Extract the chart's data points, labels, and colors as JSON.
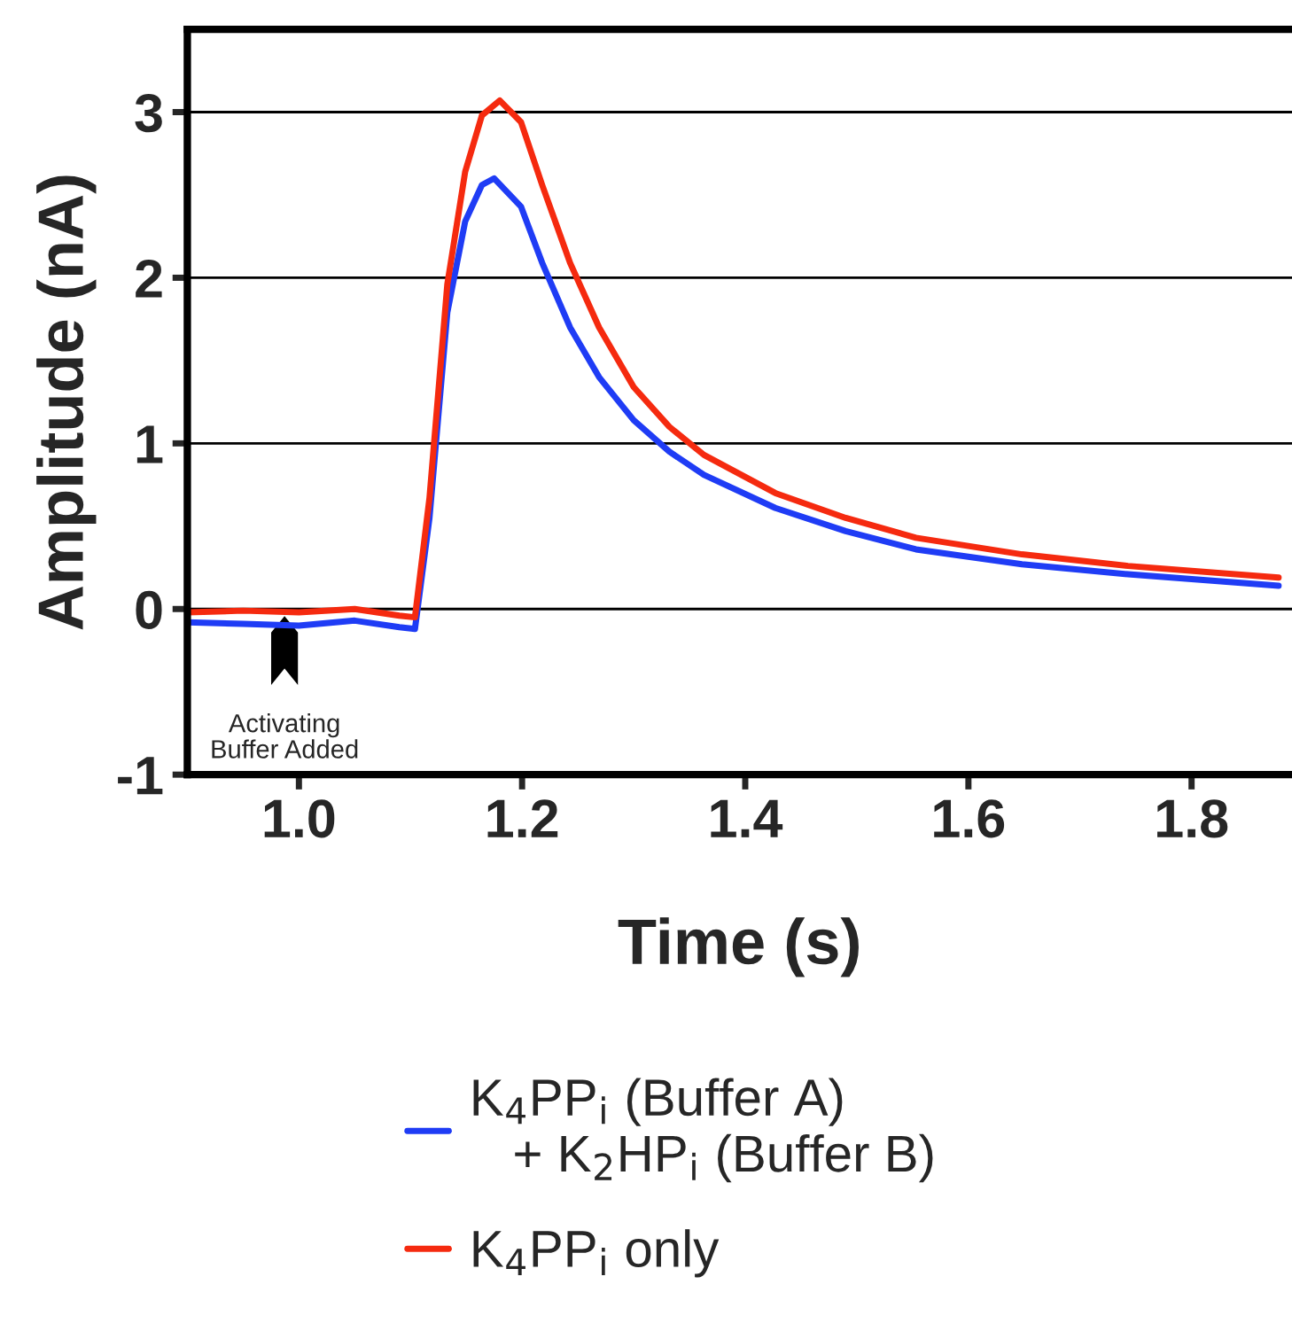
{
  "chart_data": {
    "type": "line",
    "xlabel": "Time (s)",
    "ylabel": "Amplitude (nA)",
    "xlim": [
      0.9,
      1.89
    ],
    "ylim": [
      -1,
      3.5
    ],
    "xticks": [
      {
        "value": 1.0,
        "label": "1.0"
      },
      {
        "value": 1.2,
        "label": "1.2"
      },
      {
        "value": 1.4,
        "label": "1.4"
      },
      {
        "value": 1.6,
        "label": "1.6"
      },
      {
        "value": 1.8,
        "label": "1.8"
      }
    ],
    "yticks": [
      -1,
      0,
      1,
      2,
      3
    ],
    "grid": "y",
    "legend": "bottom",
    "marker": "none",
    "line_style": "solid",
    "annotations": [
      "Activating\nBuffer Added"
    ],
    "series": [
      {
        "name": "K$_{4}$PP$_{i}$ (Buffer A)\n   + K$_{2}$HP$_{i}$ (Buffer B)",
        "color": "#1f3cf5",
        "x": [
          0.9,
          0.95,
          1.0,
          1.05,
          1.09,
          1.104,
          1.117,
          1.133,
          1.149,
          1.164,
          1.175,
          1.199,
          1.218,
          1.243,
          1.269,
          1.3,
          1.332,
          1.363,
          1.427,
          1.49,
          1.553,
          1.648,
          1.743,
          1.878
        ],
        "values": [
          -0.08,
          -0.09,
          -0.1,
          -0.07,
          -0.11,
          -0.12,
          0.55,
          1.79,
          2.34,
          2.56,
          2.6,
          2.43,
          2.09,
          1.7,
          1.4,
          1.14,
          0.95,
          0.81,
          0.61,
          0.47,
          0.36,
          0.27,
          0.21,
          0.14
        ]
      },
      {
        "name": "K$_{4}$PP$_{i}$ only",
        "color": "#f52a0f",
        "x": [
          0.9,
          0.95,
          1.0,
          1.05,
          1.09,
          1.104,
          1.117,
          1.133,
          1.149,
          1.164,
          1.18,
          1.199,
          1.218,
          1.243,
          1.269,
          1.3,
          1.332,
          1.363,
          1.427,
          1.49,
          1.553,
          1.648,
          1.743,
          1.878
        ],
        "values": [
          -0.02,
          -0.01,
          -0.02,
          0.0,
          -0.04,
          -0.05,
          0.67,
          1.96,
          2.64,
          2.98,
          3.07,
          2.94,
          2.56,
          2.09,
          1.7,
          1.34,
          1.1,
          0.93,
          0.7,
          0.55,
          0.43,
          0.33,
          0.26,
          0.19
        ]
      }
    ]
  }
}
